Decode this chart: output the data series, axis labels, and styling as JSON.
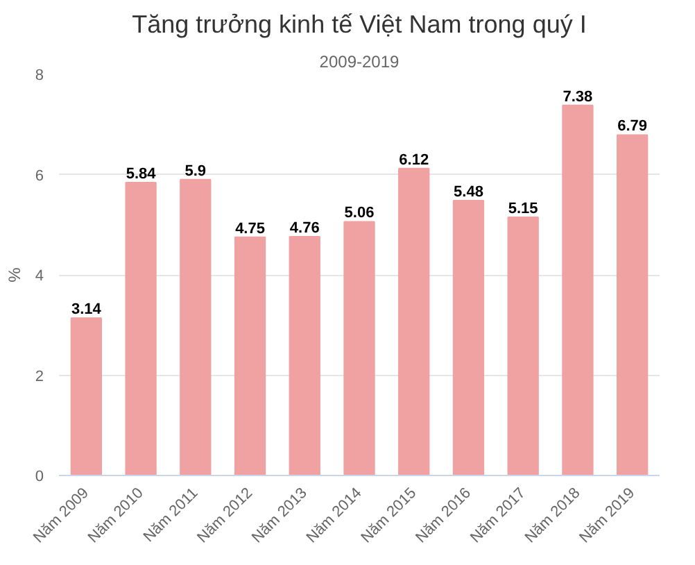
{
  "chart_data": {
    "type": "bar",
    "title": "Tăng trưởng kinh tế Việt Nam trong quý I",
    "subtitle": "2009-2019",
    "ylabel": "%",
    "categories": [
      "Năm 2009",
      "Năm 2010",
      "Năm 2011",
      "Năm 2012",
      "Năm 2013",
      "Năm 2014",
      "Năm 2015",
      "Năm 2016",
      "Năm 2017",
      "Năm 2018",
      "Năm 2019"
    ],
    "values": [
      3.14,
      5.84,
      5.9,
      4.75,
      4.76,
      5.06,
      6.12,
      5.48,
      5.15,
      7.38,
      6.79
    ],
    "color": "#f0a1a1",
    "ylim": [
      0,
      8
    ],
    "yticks": [
      0,
      2,
      4,
      6,
      8
    ],
    "grid": "y",
    "data_labels": true
  }
}
